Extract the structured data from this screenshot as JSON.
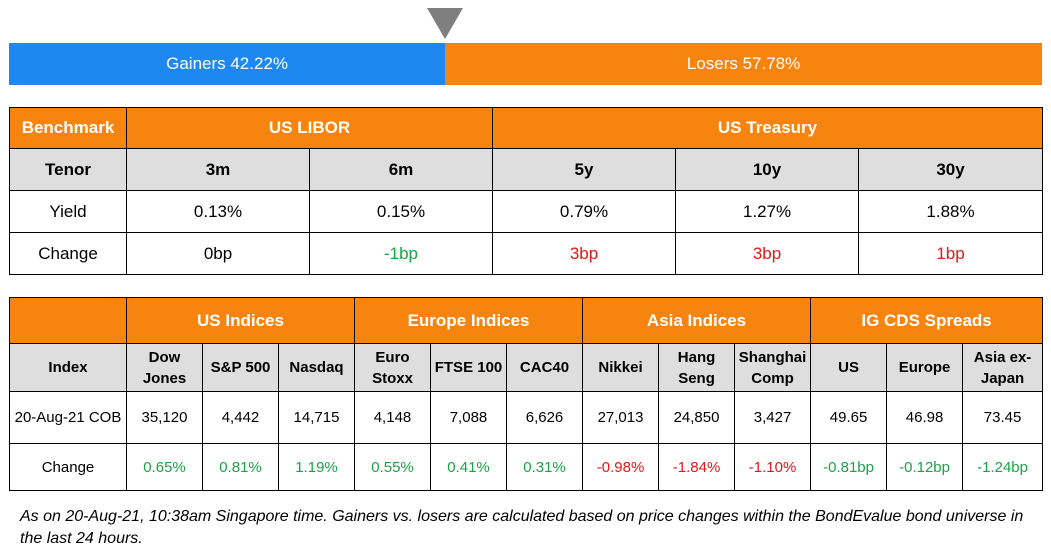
{
  "breadth": {
    "gainers_label": "Gainers 42.22%",
    "losers_label": "Losers 57.78%",
    "gainers_pct": 42.22,
    "losers_pct": 57.78,
    "gainers_color": "#1e87f0",
    "losers_color": "#f7840f",
    "pointer_color": "#7f7f7f"
  },
  "rates": {
    "benchmark_label": "Benchmark",
    "group1": "US LIBOR",
    "group2": "US Treasury",
    "tenor_label": "Tenor",
    "tenors": [
      "3m",
      "6m",
      "5y",
      "10y",
      "30y"
    ],
    "yield_label": "Yield",
    "yields": [
      "0.13%",
      "0.15%",
      "0.79%",
      "1.27%",
      "1.88%"
    ],
    "change_label": "Change",
    "changes": [
      "0bp",
      "-1bp",
      "3bp",
      "3bp",
      "1bp"
    ]
  },
  "indices": {
    "groups": [
      "US Indices",
      "Europe Indices",
      "Asia Indices",
      "IG CDS Spreads"
    ],
    "index_label": "Index",
    "columns": [
      [
        "Dow",
        "Jones"
      ],
      [
        "S&P 500"
      ],
      [
        "Nasdaq"
      ],
      [
        "Euro",
        "Stoxx"
      ],
      [
        "FTSE 100"
      ],
      [
        "CAC40"
      ],
      [
        "Nikkei"
      ],
      [
        "Hang",
        "Seng"
      ],
      [
        "Shanghai",
        "Comp"
      ],
      [
        "US"
      ],
      [
        "Europe"
      ],
      [
        "Asia ex-",
        "Japan"
      ]
    ],
    "cob_label": "20-Aug-21 COB",
    "values": [
      "35,120",
      "4,442",
      "14,715",
      "4,148",
      "7,088",
      "6,626",
      "27,013",
      "24,850",
      "3,427",
      "49.65",
      "46.98",
      "73.45"
    ],
    "change_label": "Change",
    "changes": [
      "0.65%",
      "0.81%",
      "1.19%",
      "0.55%",
      "0.41%",
      "0.31%",
      "-0.98%",
      "-1.84%",
      "-1.10%",
      "-0.81bp",
      "-0.12bp",
      "-1.24bp"
    ]
  },
  "colors": {
    "header_orange": "#f7840f",
    "subheader_gray": "#dedede",
    "positive_green": "#19a347",
    "negative_red": "#e01818"
  },
  "footnote": "As on 20-Aug-21, 10:38am Singapore time. Gainers vs. losers are calculated based on price changes within the BondEvalue bond universe in the last 24 hours."
}
